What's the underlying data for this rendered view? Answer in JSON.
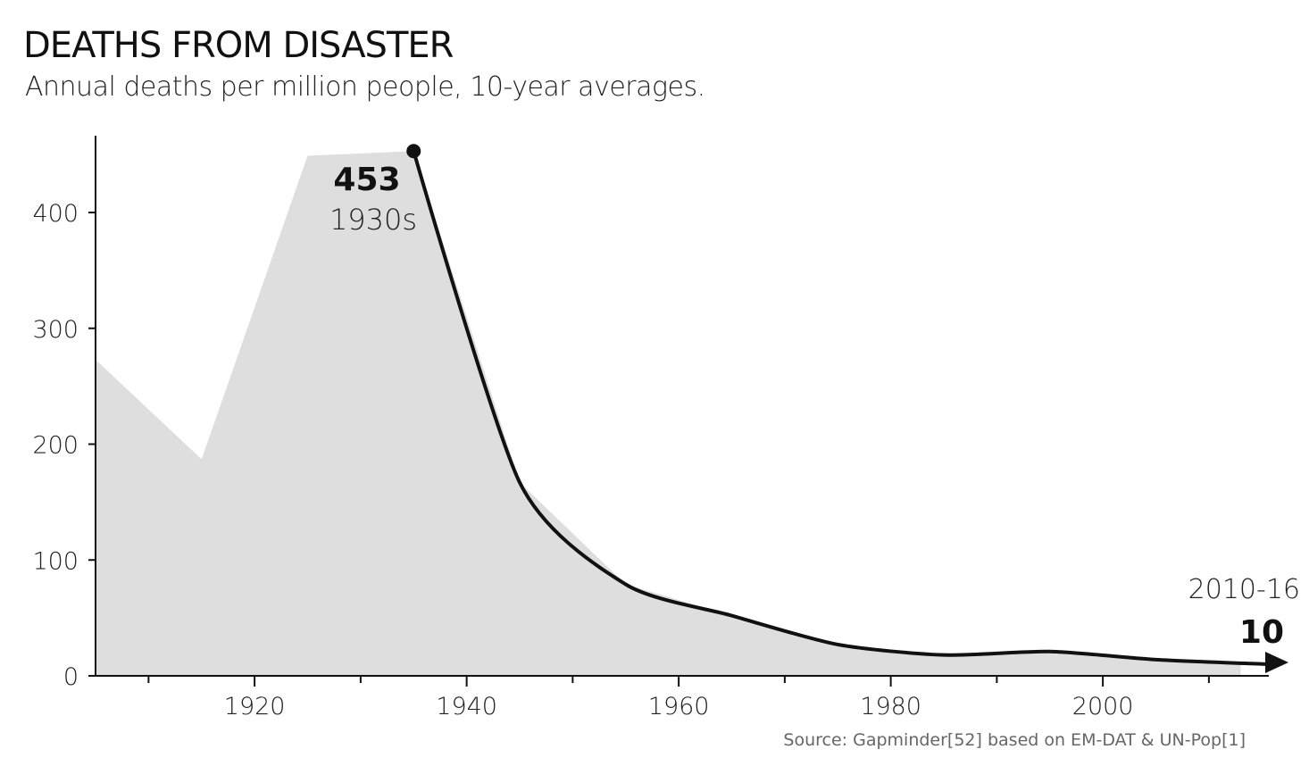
{
  "chart_data": {
    "type": "area",
    "title": "DEATHS FROM DISASTER",
    "subtitle": "Annual deaths per million people, 10-year averages.",
    "xlabel": "",
    "ylabel": "",
    "xlim": [
      1905,
      2016
    ],
    "ylim": [
      0,
      460
    ],
    "x_ticks": [
      1920,
      1940,
      1960,
      1980,
      2000
    ],
    "x_minor_ticks": [
      1910,
      1930,
      1950,
      1970,
      1990,
      2010
    ],
    "y_ticks": [
      0,
      100,
      200,
      300,
      400
    ],
    "grid": false,
    "colors": {
      "area": "#dedede",
      "line": "#111111"
    },
    "series": [
      {
        "x": [
          1905,
          1915,
          1925,
          1935,
          1945,
          1955,
          1965,
          1975,
          1985,
          1995,
          2005,
          2013
        ],
        "values": [
          273,
          187,
          449,
          453,
          167,
          79,
          52,
          27,
          18,
          21,
          14,
          10
        ]
      }
    ],
    "line_from": 1935,
    "annotations": [
      {
        "value": "453",
        "label": "1930s"
      },
      {
        "value": "10",
        "label": "2010-16"
      }
    ],
    "source": "Source: Gapminder[52] based on EM-DAT & UN-Pop[1]"
  }
}
